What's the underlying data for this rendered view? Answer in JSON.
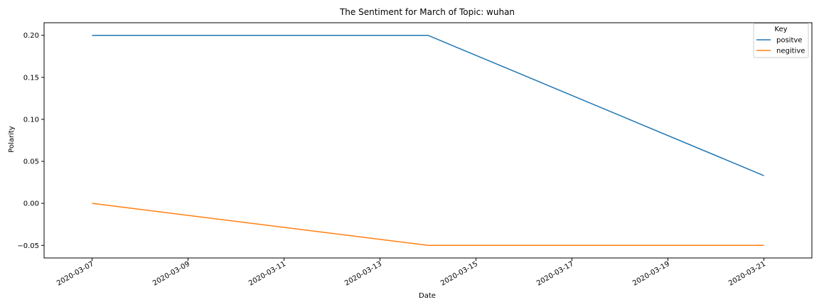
{
  "chart_data": {
    "type": "line",
    "title": "The Sentiment for March of Topic: wuhan",
    "xlabel": "Date",
    "ylabel": "Polarity",
    "x_ticks": [
      "2020-03-07",
      "2020-03-09",
      "2020-03-11",
      "2020-03-13",
      "2020-03-15",
      "2020-03-17",
      "2020-03-19",
      "2020-03-21"
    ],
    "y_ticks": [
      "0.20",
      "0.15",
      "0.10",
      "0.05",
      "0.00",
      "−0.05"
    ],
    "y_tick_values": [
      0.2,
      0.15,
      0.1,
      0.05,
      0.0,
      -0.05
    ],
    "xlim": [
      "2020-03-06",
      "2020-03-22"
    ],
    "ylim": [
      -0.065,
      0.215
    ],
    "grid": false,
    "legend": {
      "title": "Key",
      "placement": "top-right"
    },
    "series": [
      {
        "name": "positve",
        "color": "#1f77b4",
        "points": [
          {
            "x": "2020-03-07",
            "y": 0.2
          },
          {
            "x": "2020-03-14",
            "y": 0.2
          },
          {
            "x": "2020-03-21",
            "y": 0.033
          }
        ]
      },
      {
        "name": "negitive",
        "color": "#ff7f0e",
        "points": [
          {
            "x": "2020-03-07",
            "y": 0.0
          },
          {
            "x": "2020-03-14",
            "y": -0.05
          },
          {
            "x": "2020-03-21",
            "y": -0.05
          }
        ]
      }
    ]
  }
}
